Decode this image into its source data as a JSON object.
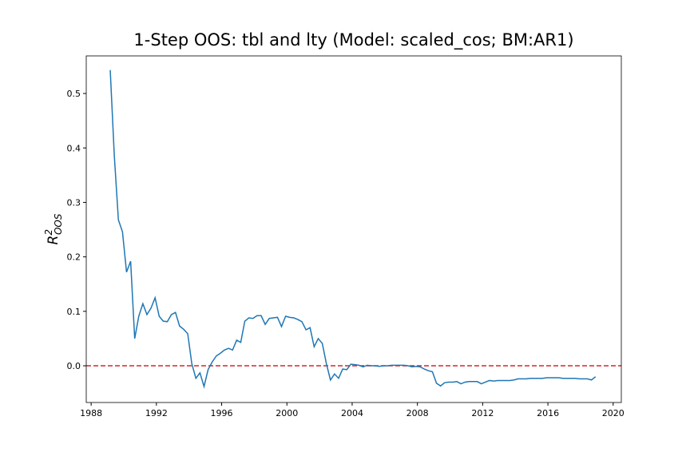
{
  "chart_data": {
    "type": "line",
    "title": "1-Step OOS: tbl and lty (Model: scaled_cos; BM:AR1)",
    "ylabel": {
      "base": "R",
      "sup": "2",
      "sub": "OOS"
    },
    "x": [
      1989.17,
      1989.42,
      1989.67,
      1989.92,
      1990.17,
      1990.42,
      1990.67,
      1990.92,
      1991.17,
      1991.42,
      1991.67,
      1991.92,
      1992.17,
      1992.42,
      1992.67,
      1992.92,
      1993.17,
      1993.42,
      1993.67,
      1993.92,
      1994.17,
      1994.42,
      1994.67,
      1994.92,
      1995.17,
      1995.42,
      1995.67,
      1995.92,
      1996.17,
      1996.42,
      1996.67,
      1996.92,
      1997.17,
      1997.42,
      1997.67,
      1997.92,
      1998.17,
      1998.42,
      1998.67,
      1998.92,
      1999.17,
      1999.42,
      1999.67,
      1999.92,
      2000.17,
      2000.42,
      2000.67,
      2000.92,
      2001.17,
      2001.42,
      2001.67,
      2001.92,
      2002.17,
      2002.42,
      2002.67,
      2002.92,
      2003.17,
      2003.42,
      2003.67,
      2003.92,
      2004.17,
      2004.42,
      2004.67,
      2004.92,
      2005.17,
      2005.42,
      2005.67,
      2005.92,
      2006.17,
      2006.42,
      2006.67,
      2006.92,
      2007.17,
      2007.42,
      2007.67,
      2007.92,
      2008.17,
      2008.42,
      2008.67,
      2008.92,
      2009.17,
      2009.42,
      2009.67,
      2009.92,
      2010.17,
      2010.42,
      2010.67,
      2010.92,
      2011.17,
      2011.42,
      2011.67,
      2011.92,
      2012.17,
      2012.42,
      2012.67,
      2012.92,
      2013.17,
      2013.42,
      2013.67,
      2013.92,
      2014.17,
      2014.42,
      2014.67,
      2014.92,
      2015.17,
      2015.42,
      2015.67,
      2015.92,
      2016.17,
      2016.42,
      2016.67,
      2016.92,
      2017.17,
      2017.42,
      2017.67,
      2017.92,
      2018.17,
      2018.42,
      2018.67,
      2018.92
    ],
    "series": [
      {
        "color": "#1f77b4",
        "values": [
          0.543,
          0.386,
          0.268,
          0.246,
          0.172,
          0.192,
          0.05,
          0.091,
          0.114,
          0.094,
          0.106,
          0.125,
          0.091,
          0.082,
          0.081,
          0.094,
          0.098,
          0.073,
          0.067,
          0.059,
          0.004,
          -0.023,
          -0.013,
          -0.038,
          -0.007,
          0.007,
          0.018,
          0.023,
          0.029,
          0.032,
          0.029,
          0.047,
          0.043,
          0.082,
          0.088,
          0.087,
          0.092,
          0.092,
          0.076,
          0.087,
          0.088,
          0.089,
          0.072,
          0.091,
          0.089,
          0.088,
          0.085,
          0.081,
          0.066,
          0.07,
          0.035,
          0.05,
          0.041,
          0.004,
          -0.026,
          -0.015,
          -0.023,
          -0.006,
          -0.007,
          0.003,
          0.002,
          0.001,
          -0.002,
          0.001,
          0.0,
          0.0,
          -0.001,
          0.0,
          0.0,
          0.001,
          0.001,
          0.001,
          0.001,
          0.0,
          -0.002,
          -0.001,
          -0.002,
          -0.006,
          -0.009,
          -0.011,
          -0.032,
          -0.037,
          -0.031,
          -0.03,
          -0.03,
          -0.029,
          -0.033,
          -0.03,
          -0.029,
          -0.029,
          -0.029,
          -0.033,
          -0.03,
          -0.027,
          -0.028,
          -0.027,
          -0.027,
          -0.027,
          -0.027,
          -0.026,
          -0.024,
          -0.024,
          -0.024,
          -0.023,
          -0.023,
          -0.023,
          -0.023,
          -0.022,
          -0.022,
          -0.022,
          -0.022,
          -0.023,
          -0.023,
          -0.023,
          -0.023,
          -0.024,
          -0.024,
          -0.024,
          -0.026,
          -0.02
        ]
      }
    ],
    "hline": {
      "value": 0,
      "color": "#d62728",
      "dashed": true
    },
    "xlim": [
      1987.7,
      2020.5
    ],
    "ylim": [
      -0.0674,
      0.569
    ],
    "xticks": [
      1988,
      1992,
      1996,
      2000,
      2004,
      2008,
      2012,
      2016,
      2020
    ],
    "yticks": [
      {
        "value": 0,
        "label": "0.0"
      },
      0.1,
      0.2,
      0.3,
      0.4,
      0.5
    ]
  }
}
